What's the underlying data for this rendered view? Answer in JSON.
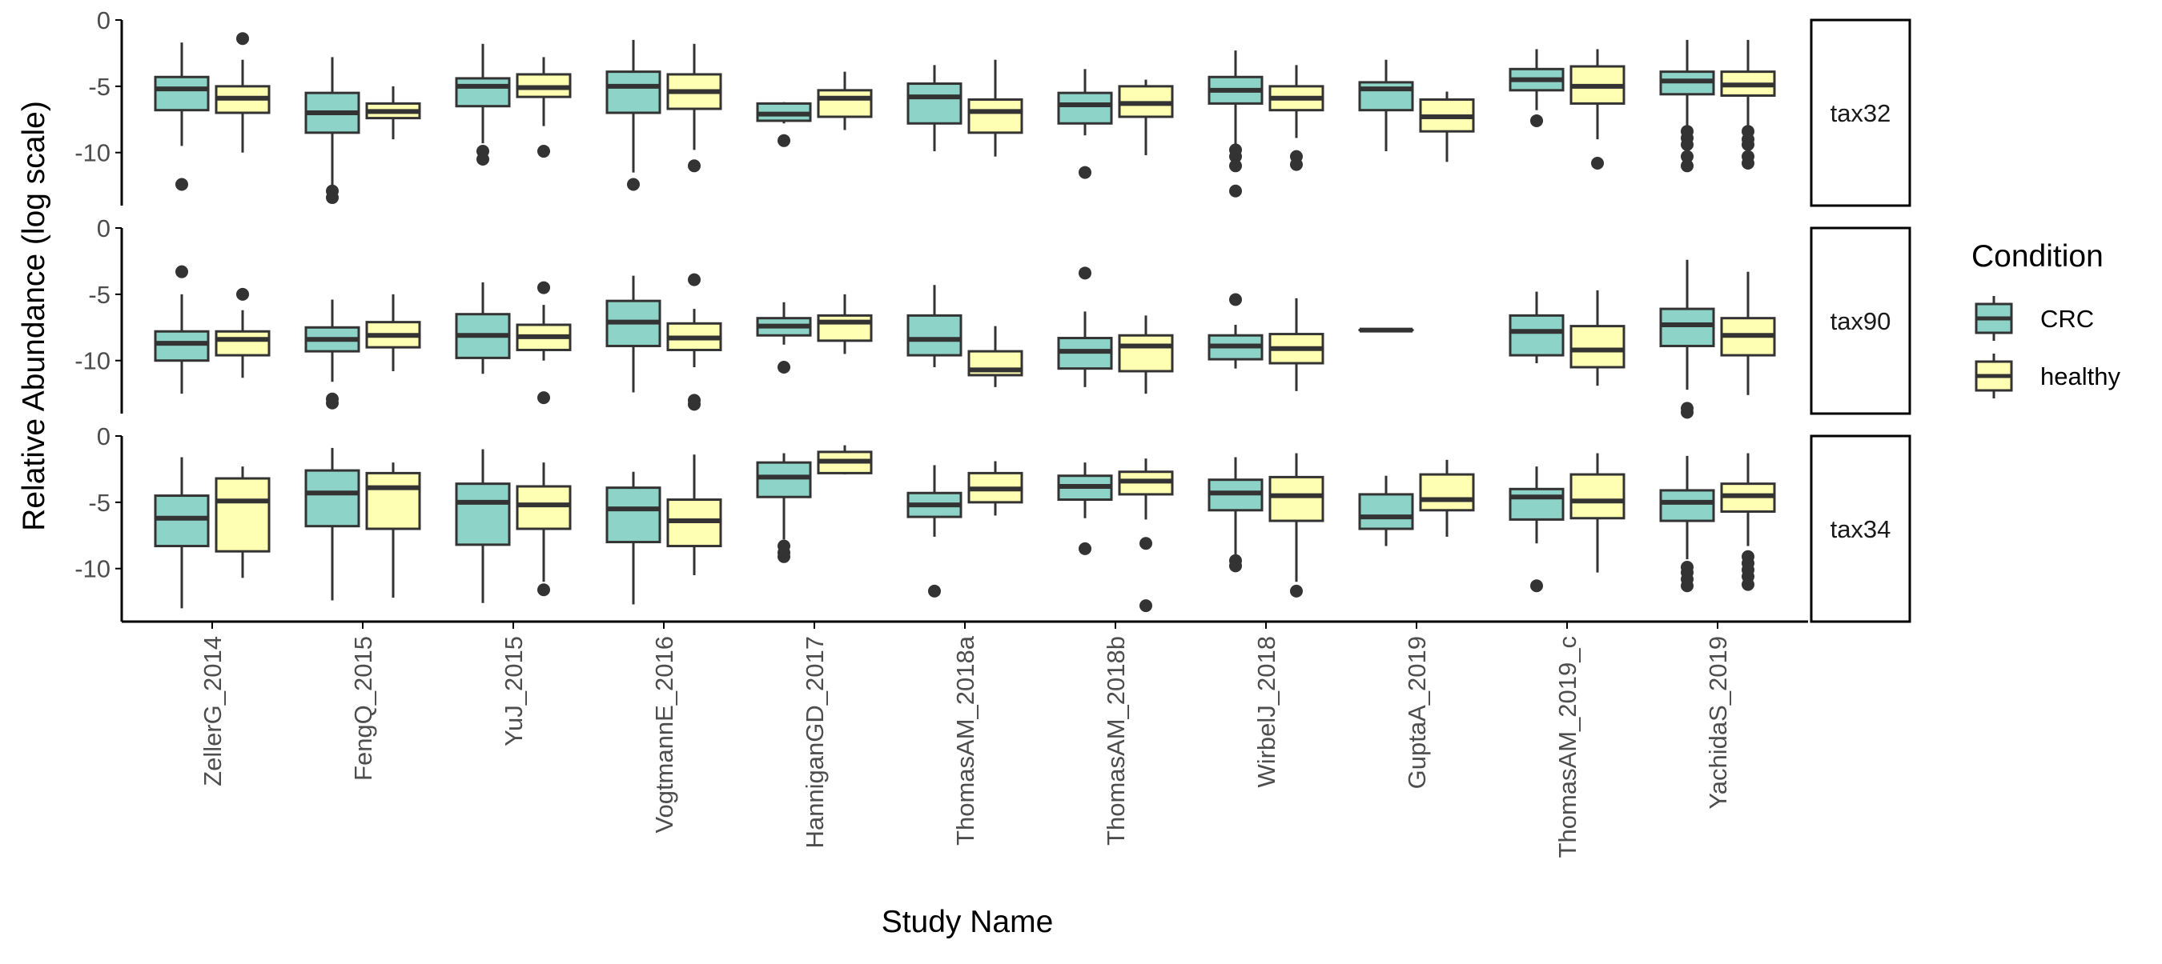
{
  "chart_data": {
    "type": "box",
    "xlabel": "Study Name",
    "ylabel": "Relative Abundance (log scale)",
    "ylim": [
      -14,
      0
    ],
    "yticks": [
      0,
      -5,
      -10
    ],
    "ytick_labels": [
      "0",
      "-5",
      "-10"
    ],
    "categories": [
      "ZellerG_2014",
      "FengQ_2015",
      "YuJ_2015",
      "VogtmannE_2016",
      "HanniganGD_2017",
      "ThomasAM_2018a",
      "ThomasAM_2018b",
      "WirbelJ_2018",
      "GuptaA_2019",
      "ThomasAM_2019_c",
      "YachidaS_2019"
    ],
    "legend": {
      "title": "Condition",
      "position": "right",
      "entries": [
        {
          "label": "CRC",
          "color": "#8DD3C7"
        },
        {
          "label": "healthy",
          "color": "#FFFFB3"
        }
      ]
    },
    "grid": false,
    "panels": [
      {
        "label": "tax32",
        "boxes": {
          "CRC": [
            {
              "whisker_low": -9.5,
              "q1": -6.8,
              "median": -5.2,
              "q3": -4.3,
              "whisker_high": -1.7,
              "outliers": [
                -12.4
              ]
            },
            {
              "whisker_low": -12.5,
              "q1": -8.5,
              "median": -7.0,
              "q3": -5.5,
              "whisker_high": -2.8,
              "outliers": [
                -12.9,
                -13.4
              ]
            },
            {
              "whisker_low": -9.3,
              "q1": -6.5,
              "median": -5.0,
              "q3": -4.4,
              "whisker_high": -1.8,
              "outliers": [
                -9.9,
                -10.5
              ]
            },
            {
              "whisker_low": -11.5,
              "q1": -7.0,
              "median": -5.0,
              "q3": -3.9,
              "whisker_high": -1.5,
              "outliers": [
                -12.4
              ]
            },
            {
              "whisker_low": -7.8,
              "q1": -7.6,
              "median": -7.1,
              "q3": -6.3,
              "whisker_high": -6.2,
              "outliers": [
                -9.1
              ]
            },
            {
              "whisker_low": -9.9,
              "q1": -7.8,
              "median": -5.8,
              "q3": -4.8,
              "whisker_high": -3.4,
              "outliers": []
            },
            {
              "whisker_low": -8.7,
              "q1": -7.8,
              "median": -6.4,
              "q3": -5.5,
              "whisker_high": -3.7,
              "outliers": [
                -11.5
              ]
            },
            {
              "whisker_low": -9.5,
              "q1": -6.3,
              "median": -5.3,
              "q3": -4.3,
              "whisker_high": -2.3,
              "outliers": [
                -9.8,
                -10.3,
                -11.0,
                -12.9
              ]
            },
            {
              "whisker_low": -9.9,
              "q1": -6.8,
              "median": -5.2,
              "q3": -4.7,
              "whisker_high": -3.0,
              "outliers": []
            },
            {
              "whisker_low": -6.8,
              "q1": -5.3,
              "median": -4.5,
              "q3": -3.7,
              "whisker_high": -2.2,
              "outliers": [
                -7.6
              ]
            },
            {
              "whisker_low": -8.1,
              "q1": -5.6,
              "median": -4.6,
              "q3": -3.9,
              "whisker_high": -1.5,
              "outliers": [
                -8.4,
                -8.9,
                -9.4,
                -10.3,
                -11.0
              ]
            }
          ],
          "healthy": [
            {
              "whisker_low": -10.0,
              "q1": -7.0,
              "median": -5.9,
              "q3": -5.0,
              "whisker_high": -3.0,
              "outliers": [
                -1.4
              ]
            },
            {
              "whisker_low": -9.0,
              "q1": -7.4,
              "median": -6.9,
              "q3": -6.3,
              "whisker_high": -5.0,
              "outliers": []
            },
            {
              "whisker_low": -8.0,
              "q1": -5.8,
              "median": -5.1,
              "q3": -4.1,
              "whisker_high": -2.8,
              "outliers": [
                -9.9
              ]
            },
            {
              "whisker_low": -9.8,
              "q1": -6.7,
              "median": -5.4,
              "q3": -4.1,
              "whisker_high": -1.8,
              "outliers": [
                -11.0
              ]
            },
            {
              "whisker_low": -8.3,
              "q1": -7.3,
              "median": -5.9,
              "q3": -5.3,
              "whisker_high": -3.9,
              "outliers": []
            },
            {
              "whisker_low": -10.3,
              "q1": -8.5,
              "median": -6.9,
              "q3": -6.0,
              "whisker_high": -3.0,
              "outliers": []
            },
            {
              "whisker_low": -10.2,
              "q1": -7.3,
              "median": -6.3,
              "q3": -5.0,
              "whisker_high": -4.5,
              "outliers": []
            },
            {
              "whisker_low": -8.9,
              "q1": -6.8,
              "median": -5.9,
              "q3": -5.0,
              "whisker_high": -3.4,
              "outliers": [
                -10.3,
                -10.9
              ]
            },
            {
              "whisker_low": -10.7,
              "q1": -8.4,
              "median": -7.3,
              "q3": -6.0,
              "whisker_high": -5.4,
              "outliers": []
            },
            {
              "whisker_low": -9.0,
              "q1": -6.3,
              "median": -5.0,
              "q3": -3.5,
              "whisker_high": -2.2,
              "outliers": [
                -10.8
              ]
            },
            {
              "whisker_low": -8.1,
              "q1": -5.7,
              "median": -4.9,
              "q3": -3.9,
              "whisker_high": -1.5,
              "outliers": [
                -8.4,
                -9.0,
                -9.4,
                -10.3,
                -10.8
              ]
            }
          ]
        }
      },
      {
        "label": "tax90",
        "boxes": {
          "CRC": [
            {
              "whisker_low": -12.5,
              "q1": -10.0,
              "median": -8.7,
              "q3": -7.8,
              "whisker_high": -5.0,
              "outliers": [
                -3.3
              ]
            },
            {
              "whisker_low": -11.6,
              "q1": -9.3,
              "median": -8.4,
              "q3": -7.5,
              "whisker_high": -5.4,
              "outliers": [
                -12.9,
                -13.2
              ]
            },
            {
              "whisker_low": -11.0,
              "q1": -9.8,
              "median": -8.1,
              "q3": -6.5,
              "whisker_high": -4.1,
              "outliers": []
            },
            {
              "whisker_low": -12.4,
              "q1": -8.9,
              "median": -7.1,
              "q3": -5.5,
              "whisker_high": -3.6,
              "outliers": []
            },
            {
              "whisker_low": -8.8,
              "q1": -8.1,
              "median": -7.4,
              "q3": -6.8,
              "whisker_high": -5.6,
              "outliers": [
                -10.5
              ]
            },
            {
              "whisker_low": -10.5,
              "q1": -9.6,
              "median": -8.4,
              "q3": -6.6,
              "whisker_high": -4.3,
              "outliers": []
            },
            {
              "whisker_low": -12.0,
              "q1": -10.6,
              "median": -9.3,
              "q3": -8.3,
              "whisker_high": -6.3,
              "outliers": [
                -3.4
              ]
            },
            {
              "whisker_low": -10.6,
              "q1": -9.9,
              "median": -8.9,
              "q3": -8.1,
              "whisker_high": -7.3,
              "outliers": [
                -5.4
              ]
            },
            {
              "whisker_low": -7.7,
              "q1": -7.7,
              "median": -7.7,
              "q3": -7.7,
              "whisker_high": -7.7,
              "outliers": []
            },
            {
              "whisker_low": -10.2,
              "q1": -9.6,
              "median": -7.8,
              "q3": -6.6,
              "whisker_high": -4.8,
              "outliers": []
            },
            {
              "whisker_low": -12.2,
              "q1": -8.9,
              "median": -7.3,
              "q3": -6.1,
              "whisker_high": -2.4,
              "outliers": [
                -13.6,
                -13.9
              ]
            }
          ],
          "healthy": [
            {
              "whisker_low": -11.3,
              "q1": -9.6,
              "median": -8.4,
              "q3": -7.8,
              "whisker_high": -6.2,
              "outliers": [
                -5.0
              ]
            },
            {
              "whisker_low": -10.8,
              "q1": -9.0,
              "median": -8.1,
              "q3": -7.1,
              "whisker_high": -5.0,
              "outliers": []
            },
            {
              "whisker_low": -10.0,
              "q1": -9.2,
              "median": -8.2,
              "q3": -7.3,
              "whisker_high": -5.8,
              "outliers": [
                -4.5,
                -12.8
              ]
            },
            {
              "whisker_low": -10.5,
              "q1": -9.2,
              "median": -8.3,
              "q3": -7.2,
              "whisker_high": -6.1,
              "outliers": [
                -3.9,
                -13.0,
                -13.3
              ]
            },
            {
              "whisker_low": -9.5,
              "q1": -8.5,
              "median": -7.1,
              "q3": -6.6,
              "whisker_high": -5.0,
              "outliers": []
            },
            {
              "whisker_low": -12.0,
              "q1": -11.1,
              "median": -10.7,
              "q3": -9.3,
              "whisker_high": -7.4,
              "outliers": []
            },
            {
              "whisker_low": -12.5,
              "q1": -10.8,
              "median": -8.9,
              "q3": -8.1,
              "whisker_high": -6.6,
              "outliers": []
            },
            {
              "whisker_low": -12.3,
              "q1": -10.2,
              "median": -9.1,
              "q3": -8.0,
              "whisker_high": -5.3,
              "outliers": []
            },
            null,
            {
              "whisker_low": -11.9,
              "q1": -10.5,
              "median": -9.2,
              "q3": -7.4,
              "whisker_high": -4.7,
              "outliers": []
            },
            {
              "whisker_low": -12.6,
              "q1": -9.6,
              "median": -8.1,
              "q3": -6.8,
              "whisker_high": -3.3,
              "outliers": []
            }
          ]
        }
      },
      {
        "label": "tax34",
        "boxes": {
          "CRC": [
            {
              "whisker_low": -13.0,
              "q1": -8.3,
              "median": -6.2,
              "q3": -4.5,
              "whisker_high": -1.6,
              "outliers": []
            },
            {
              "whisker_low": -12.4,
              "q1": -6.8,
              "median": -4.3,
              "q3": -2.6,
              "whisker_high": -0.9,
              "outliers": []
            },
            {
              "whisker_low": -12.6,
              "q1": -8.2,
              "median": -5.0,
              "q3": -3.6,
              "whisker_high": -1.0,
              "outliers": []
            },
            {
              "whisker_low": -12.7,
              "q1": -8.0,
              "median": -5.5,
              "q3": -3.9,
              "whisker_high": -2.7,
              "outliers": []
            },
            {
              "whisker_low": -7.8,
              "q1": -4.6,
              "median": -3.1,
              "q3": -2.0,
              "whisker_high": -1.3,
              "outliers": [
                -8.3,
                -8.8,
                -9.1
              ]
            },
            {
              "whisker_low": -7.6,
              "q1": -6.1,
              "median": -5.2,
              "q3": -4.3,
              "whisker_high": -2.2,
              "outliers": [
                -11.7
              ]
            },
            {
              "whisker_low": -6.2,
              "q1": -4.8,
              "median": -3.8,
              "q3": -3.0,
              "whisker_high": -2.0,
              "outliers": [
                -8.5
              ]
            },
            {
              "whisker_low": -9.1,
              "q1": -5.6,
              "median": -4.3,
              "q3": -3.3,
              "whisker_high": -1.6,
              "outliers": [
                -9.4,
                -9.8
              ]
            },
            {
              "whisker_low": -8.3,
              "q1": -7.0,
              "median": -6.1,
              "q3": -4.4,
              "whisker_high": -3.0,
              "outliers": []
            },
            {
              "whisker_low": -8.1,
              "q1": -6.3,
              "median": -4.6,
              "q3": -4.0,
              "whisker_high": -2.3,
              "outliers": [
                -11.3
              ]
            },
            {
              "whisker_low": -9.3,
              "q1": -6.4,
              "median": -5.0,
              "q3": -4.1,
              "whisker_high": -1.5,
              "outliers": [
                -9.9,
                -10.3,
                -10.8,
                -11.3
              ]
            }
          ],
          "healthy": [
            {
              "whisker_low": -10.7,
              "q1": -8.7,
              "median": -4.9,
              "q3": -3.2,
              "whisker_high": -2.3,
              "outliers": []
            },
            {
              "whisker_low": -12.2,
              "q1": -7.0,
              "median": -3.9,
              "q3": -2.8,
              "whisker_high": -2.0,
              "outliers": []
            },
            {
              "whisker_low": -11.0,
              "q1": -7.0,
              "median": -5.2,
              "q3": -3.8,
              "whisker_high": -2.0,
              "outliers": [
                -11.6
              ]
            },
            {
              "whisker_low": -10.5,
              "q1": -8.3,
              "median": -6.4,
              "q3": -4.8,
              "whisker_high": -1.4,
              "outliers": []
            },
            {
              "whisker_low": -2.9,
              "q1": -2.8,
              "median": -1.9,
              "q3": -1.2,
              "whisker_high": -0.7,
              "outliers": []
            },
            {
              "whisker_low": -6.0,
              "q1": -5.0,
              "median": -4.0,
              "q3": -2.8,
              "whisker_high": -1.9,
              "outliers": []
            },
            {
              "whisker_low": -6.3,
              "q1": -4.4,
              "median": -3.4,
              "q3": -2.7,
              "whisker_high": -1.7,
              "outliers": [
                -8.1,
                -12.8
              ]
            },
            {
              "whisker_low": -11.0,
              "q1": -6.4,
              "median": -4.5,
              "q3": -3.1,
              "whisker_high": -1.3,
              "outliers": [
                -11.7
              ]
            },
            {
              "whisker_low": -7.6,
              "q1": -5.6,
              "median": -4.8,
              "q3": -2.9,
              "whisker_high": -1.8,
              "outliers": []
            },
            {
              "whisker_low": -10.3,
              "q1": -6.2,
              "median": -4.9,
              "q3": -2.9,
              "whisker_high": -1.3,
              "outliers": []
            },
            {
              "whisker_low": -8.3,
              "q1": -5.7,
              "median": -4.5,
              "q3": -3.6,
              "whisker_high": -1.3,
              "outliers": [
                -9.1,
                -9.6,
                -10.1,
                -10.6,
                -11.2
              ]
            }
          ]
        }
      }
    ]
  }
}
